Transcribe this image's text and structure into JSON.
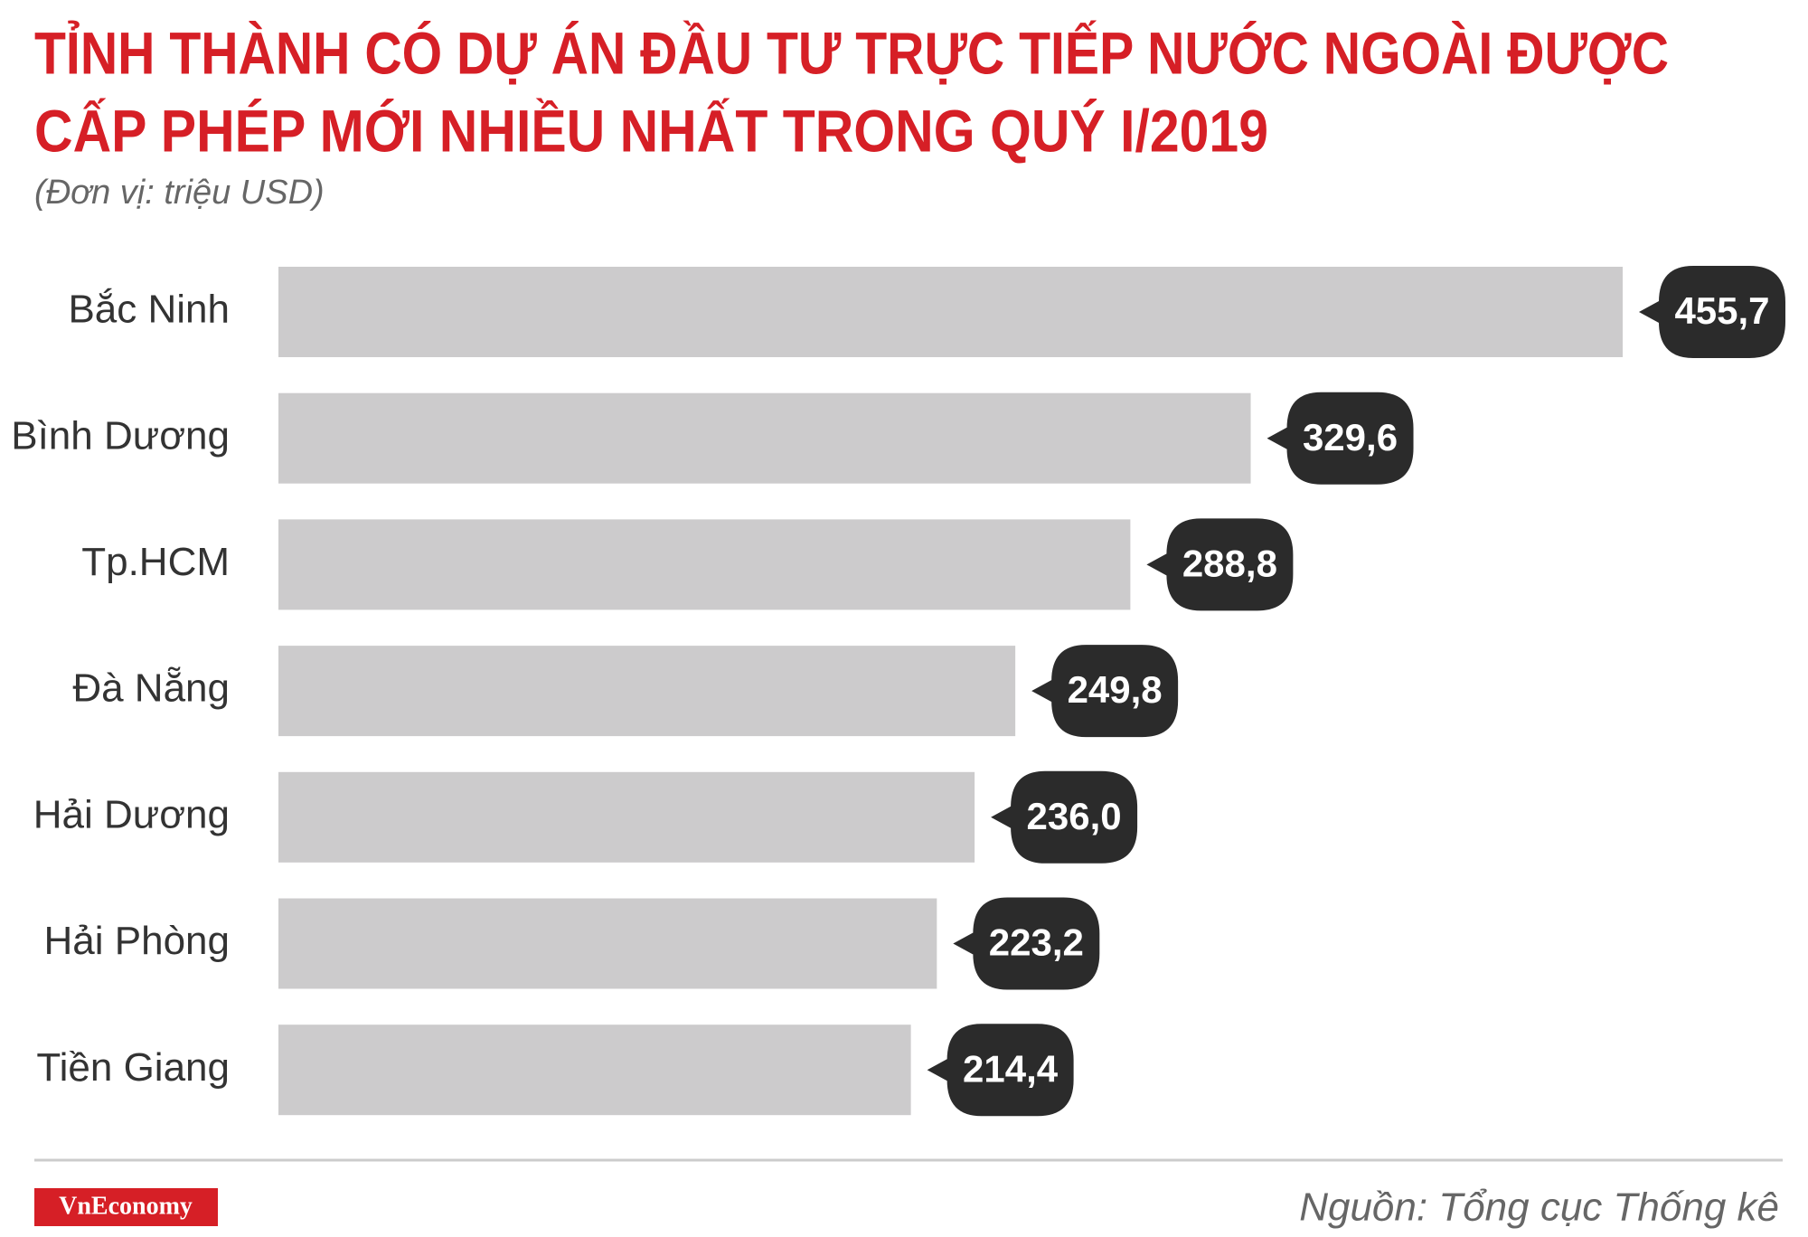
{
  "chart_data": {
    "type": "bar",
    "orientation": "horizontal",
    "title": [
      "TỈNH THÀNH CÓ DỰ ÁN ĐẦU TƯ TRỰC TIẾP NƯỚC NGOÀI ĐƯỢC",
      "CẤP PHÉP MỚI NHIỀU NHẤT TRONG QUÝ I/2019"
    ],
    "subtitle": "(Đơn vị: triệu USD)",
    "categories": [
      "Bắc Ninh",
      "Bình Dương",
      "Tp.HCM",
      "Đà Nẵng",
      "Hải Dương",
      "Hải Phòng",
      "Tiền Giang"
    ],
    "values": [
      455.7,
      329.6,
      288.8,
      249.8,
      236.0,
      223.2,
      214.4
    ],
    "value_labels": [
      "455,7",
      "329,6",
      "288,8",
      "249,8",
      "236,0",
      "223,2",
      "214,4"
    ],
    "color": "#cccbcc",
    "label_color": "#2b2b2b",
    "brand": "VnEconomy",
    "source": "Nguồn: Tổng cục Thống kê"
  }
}
